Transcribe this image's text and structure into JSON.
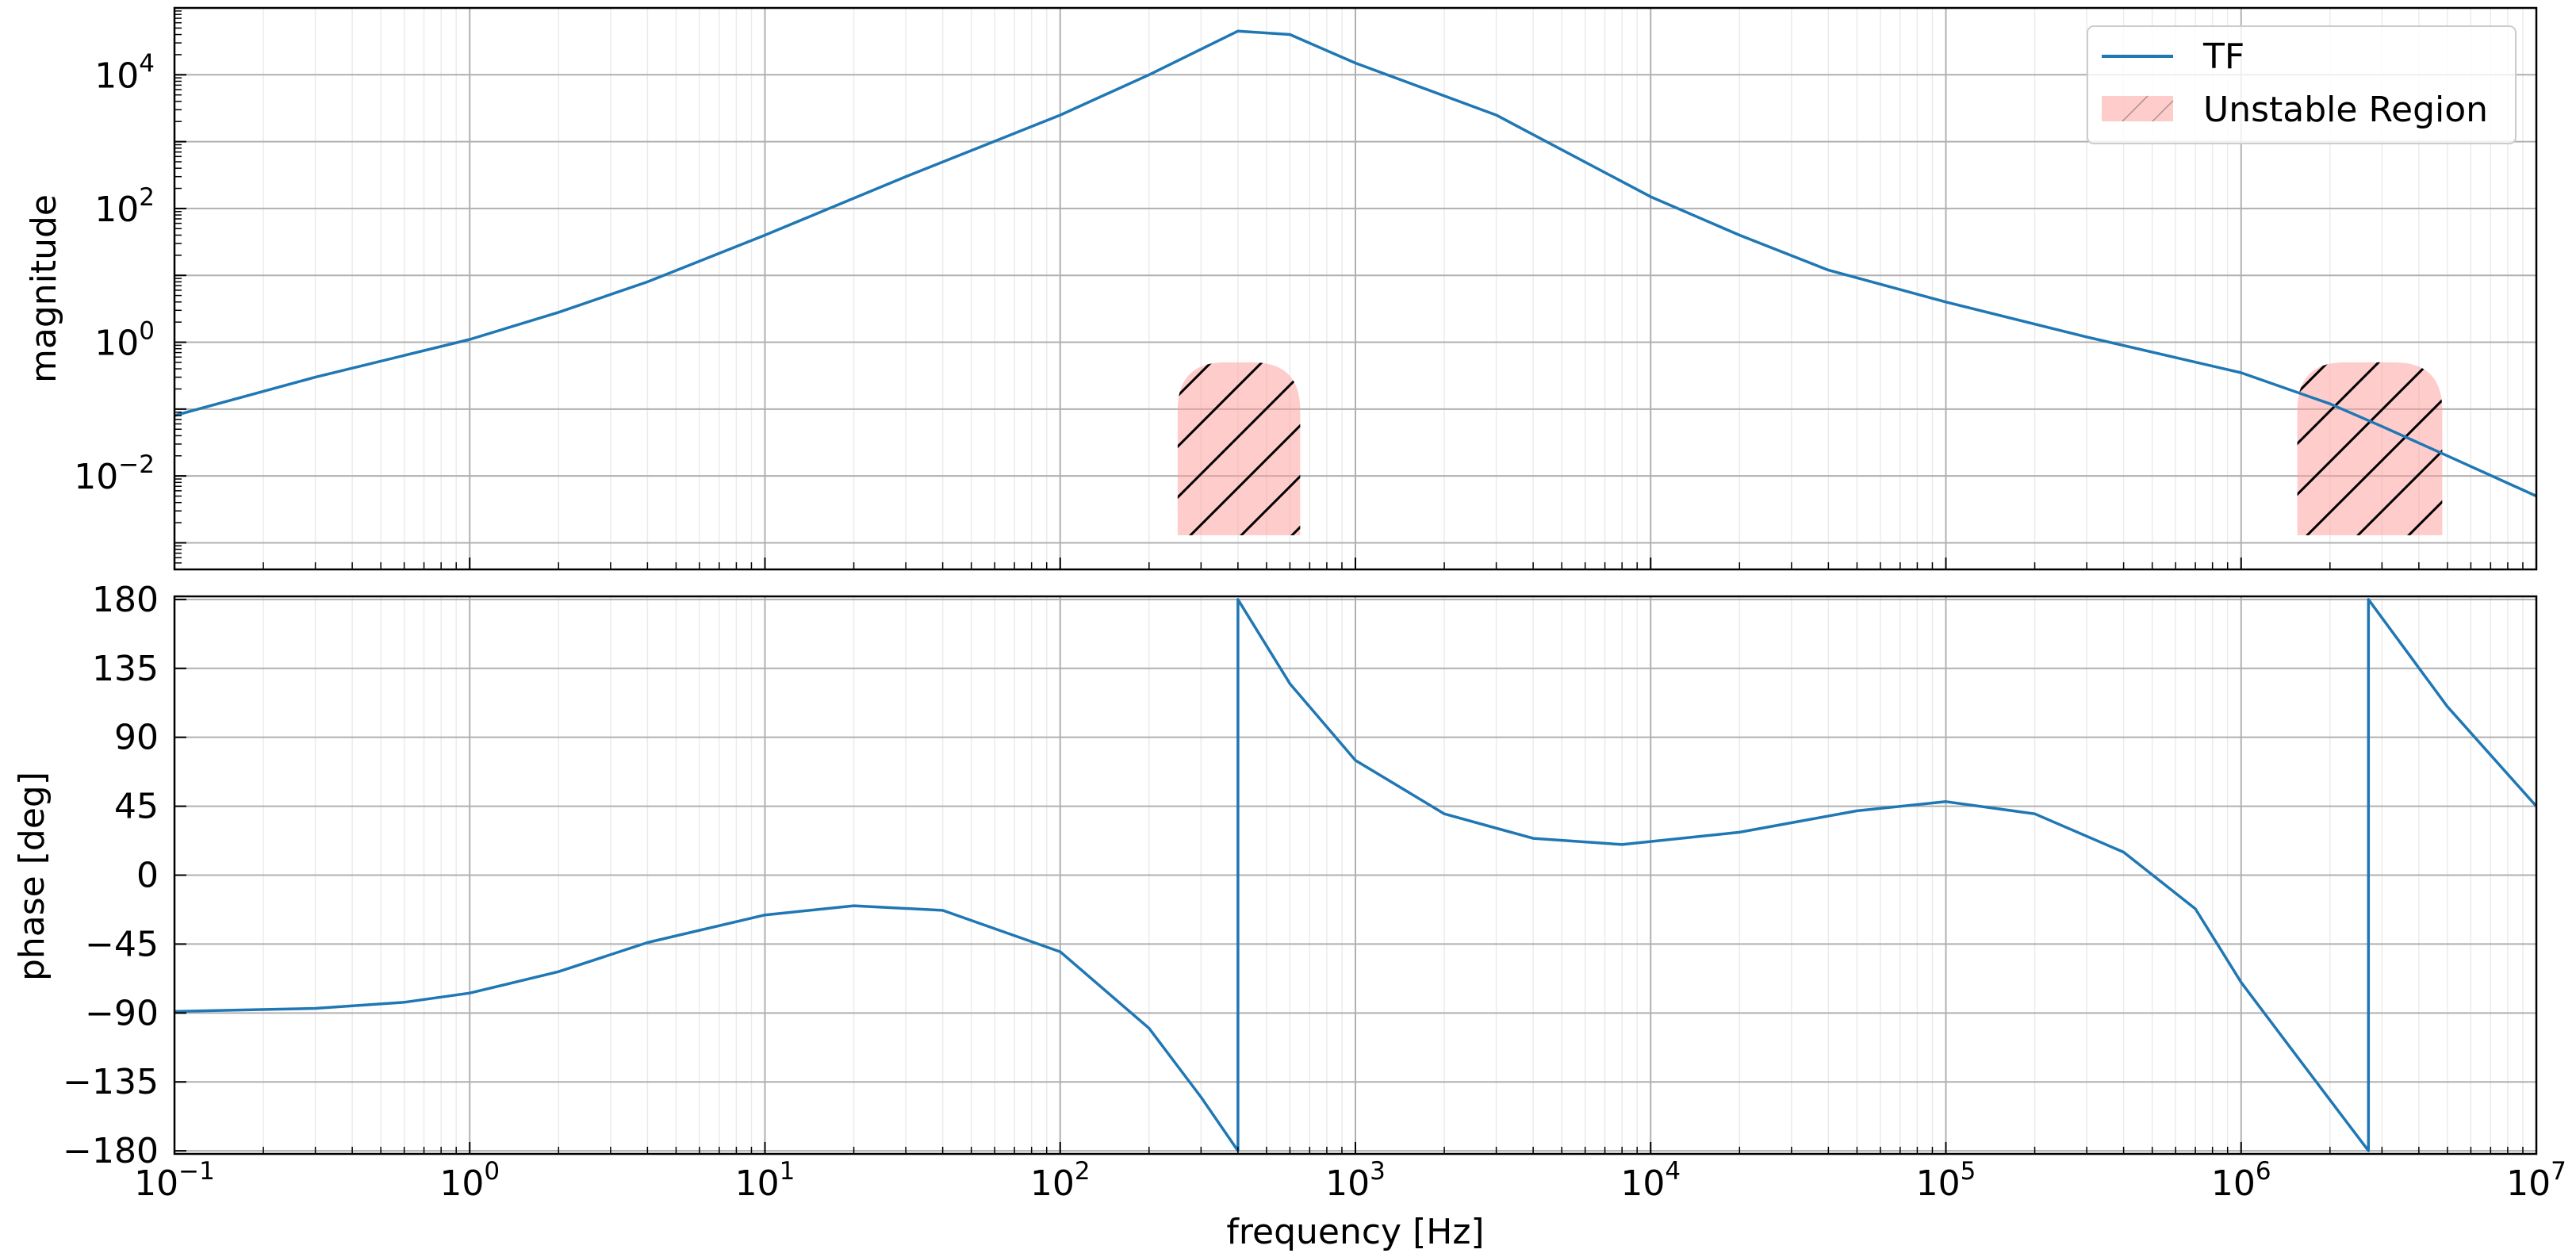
{
  "chart_data": [
    {
      "type": "line",
      "panel": "magnitude",
      "title": "",
      "xlabel": "",
      "ylabel": "magnitude",
      "x_scale": "log",
      "y_scale": "log",
      "xlim": [
        0.1,
        10000000
      ],
      "ylim": [
        0.0004,
        100000
      ],
      "grid": true,
      "legend_placement": "top-right",
      "x_tick_labels": [],
      "y_ticks": [
        {
          "value": 10000,
          "base": "10",
          "exp": "4"
        },
        {
          "value": 100,
          "base": "10",
          "exp": "2"
        },
        {
          "value": 1,
          "base": "10",
          "exp": "0"
        },
        {
          "value": 0.01,
          "base": "10",
          "exp": "−2"
        }
      ],
      "series": [
        {
          "name": "TF",
          "color": "#1f77b4",
          "points": [
            [
              0.1,
              0.08
            ],
            [
              0.3,
              0.3
            ],
            [
              1,
              1.1
            ],
            [
              2,
              2.8
            ],
            [
              4,
              8
            ],
            [
              10,
              40
            ],
            [
              30,
              300
            ],
            [
              100,
              2500
            ],
            [
              200,
              10000
            ],
            [
              400,
              45000
            ],
            [
              600,
              40000
            ],
            [
              1000,
              15000
            ],
            [
              3000,
              2500
            ],
            [
              10000,
              150
            ],
            [
              20000,
              40
            ],
            [
              40000,
              12
            ],
            [
              100000,
              4
            ],
            [
              300000,
              1.2
            ],
            [
              1000000,
              0.35
            ],
            [
              2000000,
              0.12
            ],
            [
              3000000,
              0.055
            ],
            [
              5000000,
              0.02
            ],
            [
              10000000,
              0.005
            ]
          ]
        }
      ],
      "regions": [
        {
          "name": "Unstable Region",
          "x_range": [
            250,
            650
          ],
          "y_range": [
            0.0013,
            0.5
          ],
          "fill": "#ff9999",
          "hatch": "/"
        },
        {
          "name": "Unstable Region",
          "x_range": [
            1550000,
            4800000
          ],
          "y_range": [
            0.0013,
            0.5
          ],
          "fill": "#ff9999",
          "hatch": "/"
        }
      ],
      "legend": [
        {
          "label": "TF",
          "kind": "line",
          "color": "#1f77b4"
        },
        {
          "label": "Unstable Region",
          "kind": "patch",
          "color": "#ff9999"
        }
      ]
    },
    {
      "type": "line",
      "panel": "phase",
      "title": "",
      "xlabel": "frequency [Hz]",
      "ylabel": "phase [deg]",
      "x_scale": "log",
      "y_scale": "linear",
      "xlim": [
        0.1,
        10000000
      ],
      "ylim": [
        -182,
        182
      ],
      "grid": true,
      "x_ticks": [
        {
          "value": 0.1,
          "base": "10",
          "exp": "−1"
        },
        {
          "value": 1,
          "base": "10",
          "exp": "0"
        },
        {
          "value": 10,
          "base": "10",
          "exp": "1"
        },
        {
          "value": 100,
          "base": "10",
          "exp": "2"
        },
        {
          "value": 1000,
          "base": "10",
          "exp": "3"
        },
        {
          "value": 10000,
          "base": "10",
          "exp": "4"
        },
        {
          "value": 100000,
          "base": "10",
          "exp": "5"
        },
        {
          "value": 1000000,
          "base": "10",
          "exp": "6"
        },
        {
          "value": 10000000,
          "base": "10",
          "exp": "7"
        }
      ],
      "y_ticks": [
        {
          "value": 180,
          "label": "180"
        },
        {
          "value": 135,
          "label": "135"
        },
        {
          "value": 90,
          "label": "90"
        },
        {
          "value": 45,
          "label": "45"
        },
        {
          "value": 0,
          "label": "0"
        },
        {
          "value": -45,
          "label": "−45"
        },
        {
          "value": -90,
          "label": "−90"
        },
        {
          "value": -135,
          "label": "−135"
        },
        {
          "value": -180,
          "label": "−180"
        }
      ],
      "series": [
        {
          "name": "TF",
          "color": "#1f77b4",
          "points": [
            [
              0.1,
              -89
            ],
            [
              0.3,
              -87
            ],
            [
              0.6,
              -83
            ],
            [
              1,
              -77
            ],
            [
              2,
              -63
            ],
            [
              4,
              -44
            ],
            [
              10,
              -26
            ],
            [
              20,
              -20
            ],
            [
              40,
              -23
            ],
            [
              100,
              -50
            ],
            [
              200,
              -100
            ],
            [
              300,
              -145
            ],
            [
              400,
              -180
            ],
            [
              400,
              180
            ],
            [
              600,
              125
            ],
            [
              1000,
              75
            ],
            [
              2000,
              40
            ],
            [
              4000,
              24
            ],
            [
              8000,
              20
            ],
            [
              20000,
              28
            ],
            [
              50000,
              42
            ],
            [
              100000,
              48
            ],
            [
              200000,
              40
            ],
            [
              400000,
              15
            ],
            [
              700000,
              -22
            ],
            [
              1000000,
              -70
            ],
            [
              1500000,
              -115
            ],
            [
              2700000,
              -180
            ],
            [
              2700000,
              180
            ],
            [
              5000000,
              110
            ],
            [
              10000000,
              45
            ]
          ]
        }
      ]
    }
  ]
}
